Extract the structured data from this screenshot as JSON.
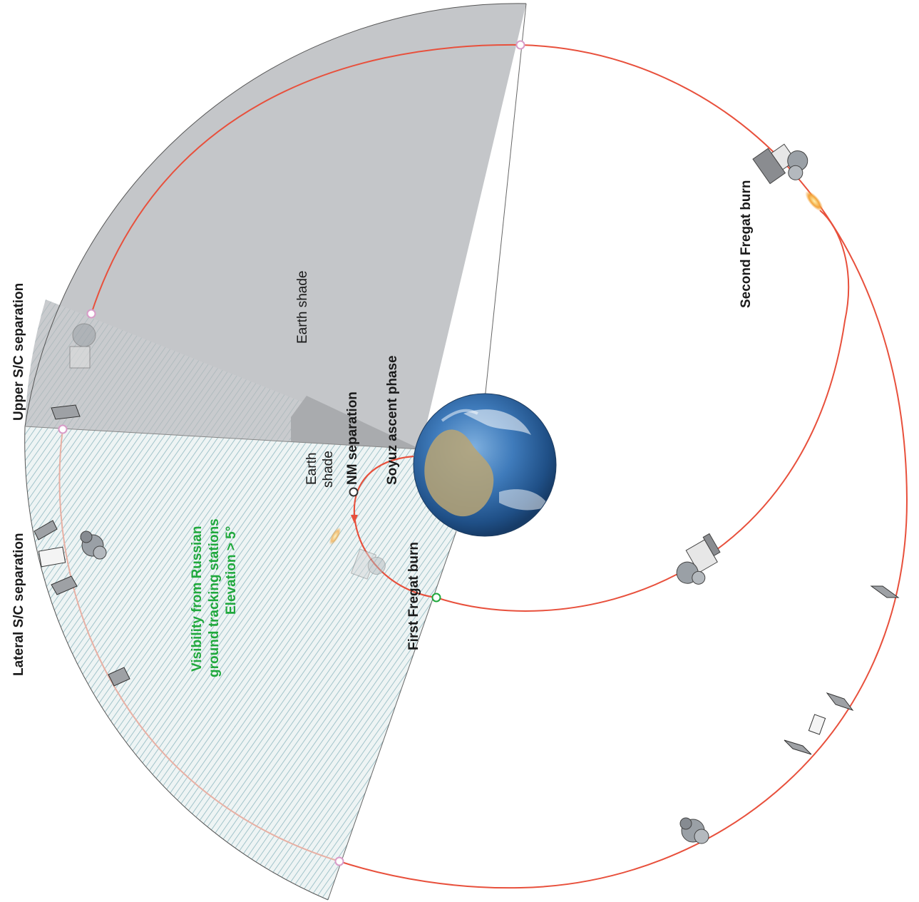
{
  "diagram": {
    "labels": {
      "upper_sc_separation": "Upper S/C separation",
      "lateral_sc_separation": "Lateral S/C separation",
      "earth_shade_large": "Earth shade",
      "earth_shade_small_line1": "Earth",
      "earth_shade_small_line2": "shade",
      "nm_separation": "NM separation",
      "soyuz_ascent_phase": "Soyuz ascent phase",
      "first_fregat_burn": "First Fregat burn",
      "second_fregat_burn": "Second  Fregat burn",
      "visibility_line1": "Visibility from Russian",
      "visibility_line2": "ground tracking stations",
      "visibility_line3": "Elevation > 5°"
    },
    "colors": {
      "orbit": "#e8503c",
      "shade_fill": "#c4c6c9",
      "shade_dark": "#a9abae",
      "visibility_fill": "#eef4f4",
      "visibility_hatch": "#8fb8c0",
      "visibility_text": "#1fa83c",
      "marker_pink": "#d99bc8",
      "marker_green": "#1fa83c",
      "earth_ocean": "#2f6aa8",
      "earth_land": "#b9a474"
    },
    "icons": [
      "earth-globe-icon",
      "fregat-spacecraft-icon",
      "solar-panel-icon",
      "thruster-plume-icon"
    ]
  }
}
